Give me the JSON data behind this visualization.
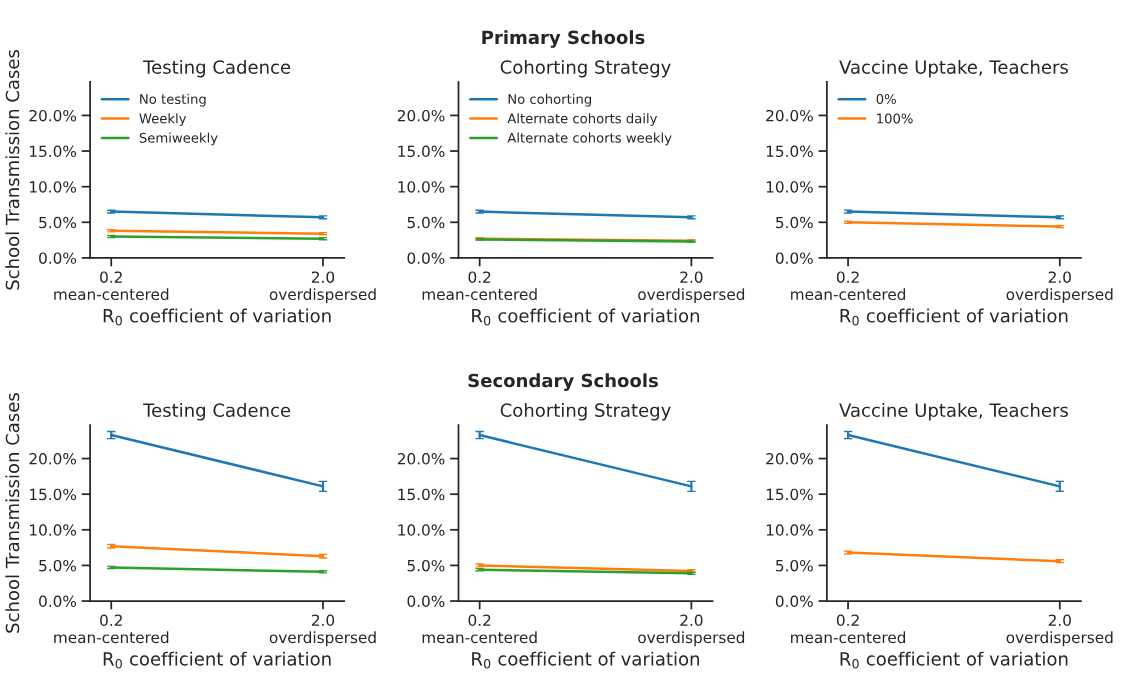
{
  "chart_data": [
    {
      "type": "line",
      "title": "Testing Cadence",
      "annotations": [
        "Primary Schools"
      ],
      "ylabel": "School Transmission Cases",
      "xlabel": "R$_{0}$ coefficient of variation",
      "categories": [
        "0.2\nmean-centered",
        "2.0\noverdispersed"
      ],
      "ylim": [
        0,
        24.7
      ],
      "yticks": [
        {
          "value": 0,
          "label": "0.0%"
        },
        {
          "value": 5,
          "label": "5.0%"
        },
        {
          "value": 10,
          "label": "10.0%"
        },
        {
          "value": 15,
          "label": "15.0%"
        },
        {
          "value": 20,
          "label": "20.0%"
        }
      ],
      "legend": "top left",
      "grid": false,
      "series": [
        {
          "name": "No testing",
          "color": "#1f77b4",
          "values": [
            6.5,
            5.7
          ],
          "errors": [
            0.2,
            0.2
          ]
        },
        {
          "name": "Weekly",
          "color": "#ff7f0e",
          "values": [
            3.8,
            3.4
          ],
          "errors": [
            0.15,
            0.15
          ]
        },
        {
          "name": "Semiweekly",
          "color": "#2ca02c",
          "values": [
            3.0,
            2.7
          ],
          "errors": [
            0.15,
            0.15
          ]
        }
      ]
    },
    {
      "type": "line",
      "title": "Cohorting Strategy",
      "xlabel": "R$_{0}$ coefficient of variation",
      "categories": [
        "0.2\nmean-centered",
        "2.0\noverdispersed"
      ],
      "ylim": [
        0,
        24.7
      ],
      "yticks": [
        {
          "value": 0,
          "label": "0.0%"
        },
        {
          "value": 5,
          "label": "5.0%"
        },
        {
          "value": 10,
          "label": "10.0%"
        },
        {
          "value": 15,
          "label": "15.0%"
        },
        {
          "value": 20,
          "label": "20.0%"
        }
      ],
      "legend": "top left",
      "grid": false,
      "series": [
        {
          "name": "No cohorting",
          "color": "#1f77b4",
          "values": [
            6.5,
            5.7
          ],
          "errors": [
            0.2,
            0.2
          ]
        },
        {
          "name": "Alternate cohorts daily",
          "color": "#ff7f0e",
          "values": [
            2.7,
            2.4
          ],
          "errors": [
            0.15,
            0.15
          ]
        },
        {
          "name": "Alternate cohorts weekly",
          "color": "#2ca02c",
          "values": [
            2.6,
            2.3
          ],
          "errors": [
            0.1,
            0.1
          ]
        }
      ]
    },
    {
      "type": "line",
      "title": "Vaccine Uptake, Teachers",
      "xlabel": "R$_{0}$ coefficient of variation",
      "categories": [
        "0.2\nmean-centered",
        "2.0\noverdispersed"
      ],
      "ylim": [
        0,
        24.7
      ],
      "yticks": [
        {
          "value": 0,
          "label": "0.0%"
        },
        {
          "value": 5,
          "label": "5.0%"
        },
        {
          "value": 10,
          "label": "10.0%"
        },
        {
          "value": 15,
          "label": "15.0%"
        },
        {
          "value": 20,
          "label": "20.0%"
        }
      ],
      "legend": "top left",
      "grid": false,
      "series": [
        {
          "name": "0%",
          "color": "#1f77b4",
          "values": [
            6.5,
            5.7
          ],
          "errors": [
            0.2,
            0.2
          ]
        },
        {
          "name": "100%",
          "color": "#ff7f0e",
          "values": [
            5.0,
            4.4
          ],
          "errors": [
            0.15,
            0.15
          ]
        }
      ]
    },
    {
      "type": "line",
      "title": "Testing Cadence",
      "annotations": [
        "Secondary Schools"
      ],
      "ylabel": "School Transmission Cases",
      "xlabel": "R$_{0}$ coefficient of variation",
      "categories": [
        "0.2\nmean-centered",
        "2.0\noverdispersed"
      ],
      "ylim": [
        0,
        24.7
      ],
      "yticks": [
        {
          "value": 0,
          "label": "0.0%"
        },
        {
          "value": 5,
          "label": "5.0%"
        },
        {
          "value": 10,
          "label": "10.0%"
        },
        {
          "value": 15,
          "label": "15.0%"
        },
        {
          "value": 20,
          "label": "20.0%"
        }
      ],
      "grid": false,
      "series": [
        {
          "color": "#1f77b4",
          "values": [
            23.3,
            16.1
          ],
          "errors": [
            0.5,
            0.7
          ]
        },
        {
          "color": "#ff7f0e",
          "values": [
            7.7,
            6.3
          ],
          "errors": [
            0.25,
            0.25
          ]
        },
        {
          "color": "#2ca02c",
          "values": [
            4.7,
            4.1
          ],
          "errors": [
            0.15,
            0.15
          ]
        }
      ]
    },
    {
      "type": "line",
      "title": "Cohorting Strategy",
      "xlabel": "R$_{0}$ coefficient of variation",
      "categories": [
        "0.2\nmean-centered",
        "2.0\noverdispersed"
      ],
      "ylim": [
        0,
        24.7
      ],
      "yticks": [
        {
          "value": 0,
          "label": "0.0%"
        },
        {
          "value": 5,
          "label": "5.0%"
        },
        {
          "value": 10,
          "label": "10.0%"
        },
        {
          "value": 15,
          "label": "15.0%"
        },
        {
          "value": 20,
          "label": "20.0%"
        }
      ],
      "grid": false,
      "series": [
        {
          "color": "#1f77b4",
          "values": [
            23.3,
            16.1
          ],
          "errors": [
            0.5,
            0.7
          ]
        },
        {
          "color": "#ff7f0e",
          "values": [
            5.0,
            4.2
          ],
          "errors": [
            0.2,
            0.2
          ]
        },
        {
          "color": "#2ca02c",
          "values": [
            4.4,
            3.9
          ],
          "errors": [
            0.15,
            0.15
          ]
        }
      ]
    },
    {
      "type": "line",
      "title": "Vaccine Uptake, Teachers",
      "xlabel": "R$_{0}$ coefficient of variation",
      "categories": [
        "0.2\nmean-centered",
        "2.0\noverdispersed"
      ],
      "ylim": [
        0,
        24.7
      ],
      "yticks": [
        {
          "value": 0,
          "label": "0.0%"
        },
        {
          "value": 5,
          "label": "5.0%"
        },
        {
          "value": 10,
          "label": "10.0%"
        },
        {
          "value": 15,
          "label": "15.0%"
        },
        {
          "value": 20,
          "label": "20.0%"
        }
      ],
      "grid": false,
      "series": [
        {
          "color": "#1f77b4",
          "values": [
            23.3,
            16.1
          ],
          "errors": [
            0.5,
            0.7
          ]
        },
        {
          "color": "#ff7f0e",
          "values": [
            6.8,
            5.6
          ],
          "errors": [
            0.2,
            0.2
          ]
        }
      ]
    }
  ]
}
